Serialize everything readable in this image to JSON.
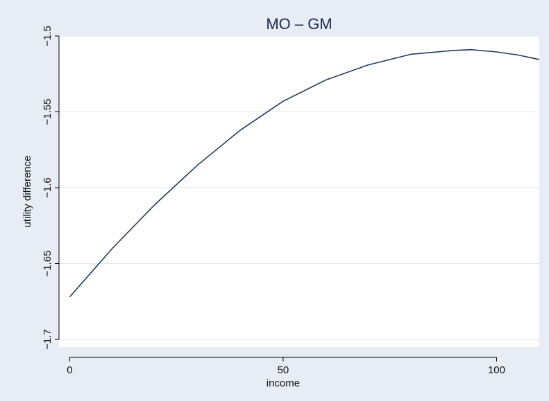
{
  "chart_data": {
    "type": "line",
    "title": "MO – GM",
    "xlabel": "income",
    "ylabel": "utility difference",
    "xlim": [
      -2.5,
      110
    ],
    "ylim": [
      -1.705,
      -1.5
    ],
    "xticks": [
      0,
      50,
      100
    ],
    "xtick_labels": [
      "0",
      "50",
      "100"
    ],
    "yticks": [
      -1.5,
      -1.55,
      -1.6,
      -1.65,
      -1.7
    ],
    "ytick_labels": [
      "-1.5",
      "-1.55",
      "-1.6",
      "-1.65",
      "-1.7"
    ],
    "grid": true,
    "legend": "none",
    "series": [
      {
        "color": "#1f3a60",
        "x": [
          0,
          10,
          20,
          30,
          40,
          50,
          60,
          70,
          80,
          90,
          94,
          100,
          105,
          110
        ],
        "y": [
          -1.672,
          -1.64,
          -1.611,
          -1.585,
          -1.562,
          -1.543,
          -1.529,
          -1.519,
          -1.512,
          -1.5095,
          -1.509,
          -1.5105,
          -1.5125,
          -1.5155
        ]
      }
    ],
    "colors": {
      "background": "#e8ecf4",
      "plot_area": "#ffffff",
      "grid": "#dfe6ee",
      "axis": "#000000",
      "line": "#1f3a60",
      "title": "#1a2a4a"
    }
  }
}
